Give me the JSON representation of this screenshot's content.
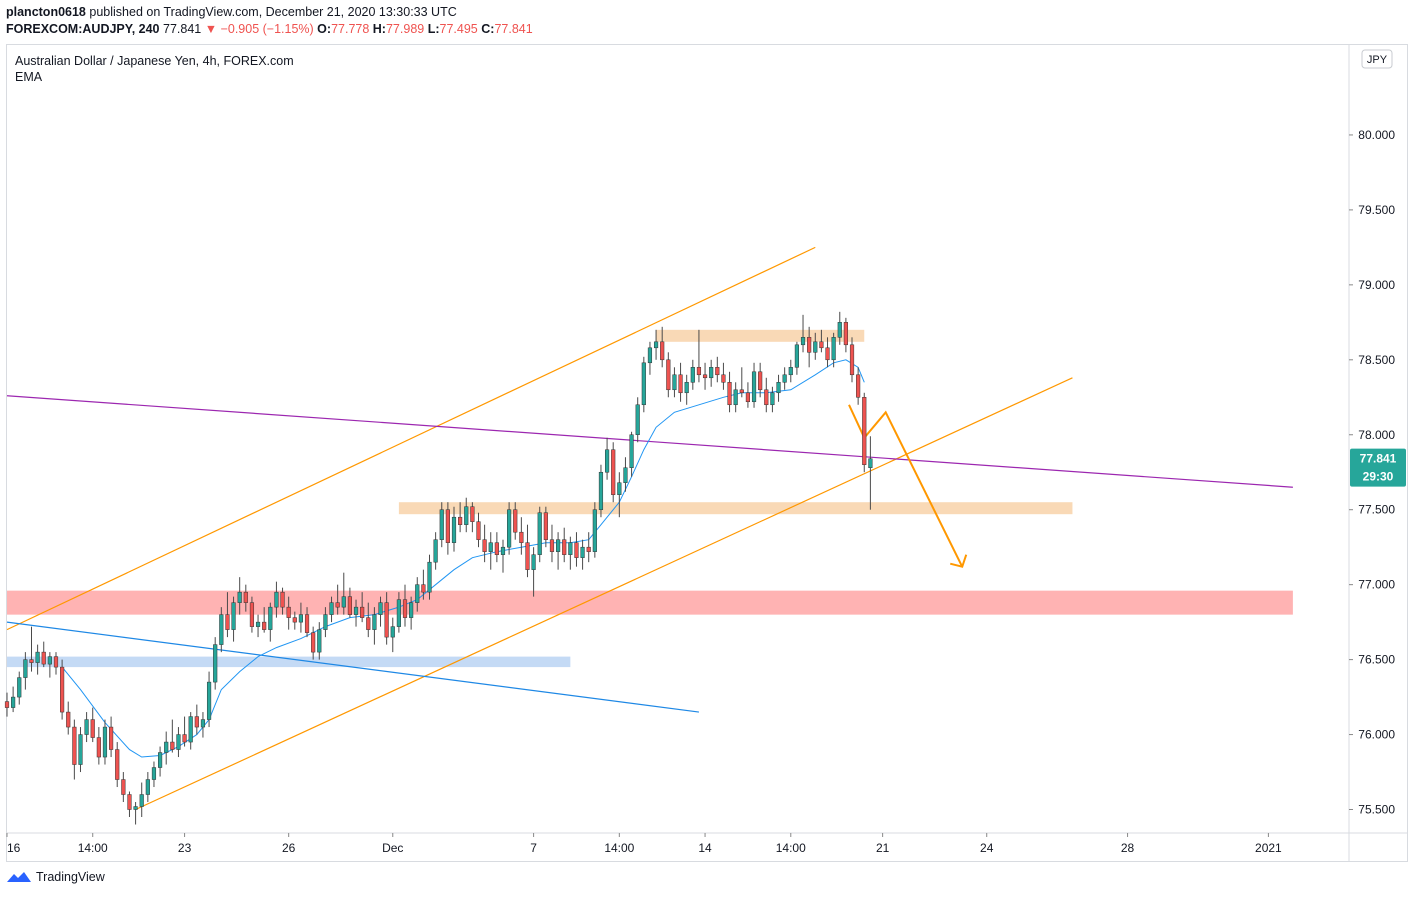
{
  "header": {
    "author": "plancton0618",
    "published_on": "published on TradingView.com, December 21, 2020 13:30:33 UTC",
    "symbol": "FOREXCOM:AUDJPY, 240",
    "last": "77.841",
    "change": "▼ −0.905 (−1.15%)",
    "o_label": "O:",
    "o_value": "77.778",
    "h_label": "H:",
    "h_value": "77.989",
    "l_label": "L:",
    "l_value": "77.495",
    "c_label": "C:",
    "c_value": "77.841"
  },
  "legend": {
    "title": "Australian Dollar / Japanese Yen, 4h, FOREX.com",
    "indicator": "EMA"
  },
  "price_tags": {
    "current": "77.841",
    "countdown": "29:30",
    "currency_button": "JPY"
  },
  "footer": {
    "brand": "TradingView"
  },
  "colors": {
    "up": "#26a69a",
    "down": "#ef5350",
    "wick": "#4a4a4a",
    "ema": "#2196f3",
    "channel": "#ff9800",
    "purple": "#9c27b0",
    "blue_line": "#1e88e5",
    "zone_orange": "#f9d9b6",
    "zone_red": "#ffb3b3",
    "zone_blue": "#c4daf5",
    "tag_bg": "#26a69a"
  },
  "chart_data": {
    "type": "candlestick",
    "title": "Australian Dollar / Japanese Yen, 4h, FOREX.com",
    "y_ticks": [
      "75.500",
      "76.000",
      "76.500",
      "77.000",
      "77.500",
      "78.000",
      "78.500",
      "79.000",
      "79.500",
      "80.000"
    ],
    "y_range": [
      75.35,
      80.6
    ],
    "x_ticks": [
      {
        "label": "16",
        "i": 0
      },
      {
        "label": "14:00",
        "i": 14
      },
      {
        "label": "23",
        "i": 29
      },
      {
        "label": "26",
        "i": 46
      },
      {
        "label": "Dec",
        "i": 63
      },
      {
        "label": "7",
        "i": 86
      },
      {
        "label": "14:00",
        "i": 100
      },
      {
        "label": "14",
        "i": 114
      },
      {
        "label": "14:00",
        "i": 128
      },
      {
        "label": "21",
        "i": 143
      },
      {
        "label": "24",
        "i": 160
      },
      {
        "label": "28",
        "i": 183
      },
      {
        "label": "2021",
        "i": 206
      }
    ],
    "x_domain": [
      0,
      219
    ],
    "ema_period": 20,
    "ohlc": [
      [
        76.22,
        76.28,
        76.12,
        76.18
      ],
      [
        76.18,
        76.32,
        76.15,
        76.25
      ],
      [
        76.25,
        76.42,
        76.2,
        76.38
      ],
      [
        76.38,
        76.55,
        76.3,
        76.5
      ],
      [
        76.5,
        76.72,
        76.42,
        76.48
      ],
      [
        76.48,
        76.6,
        76.4,
        76.55
      ],
      [
        76.55,
        76.62,
        76.45,
        76.47
      ],
      [
        76.47,
        76.55,
        76.38,
        76.52
      ],
      [
        76.52,
        76.55,
        76.4,
        76.45
      ],
      [
        76.45,
        76.5,
        76.1,
        76.15
      ],
      [
        76.15,
        76.22,
        76.0,
        76.05
      ],
      [
        76.05,
        76.1,
        75.7,
        75.8
      ],
      [
        75.8,
        76.05,
        75.75,
        76.0
      ],
      [
        76.0,
        76.15,
        75.95,
        76.1
      ],
      [
        76.1,
        76.18,
        75.95,
        75.98
      ],
      [
        75.98,
        76.05,
        75.8,
        75.85
      ],
      [
        75.85,
        76.1,
        75.8,
        76.05
      ],
      [
        76.05,
        76.12,
        75.85,
        75.9
      ],
      [
        75.9,
        75.95,
        75.65,
        75.7
      ],
      [
        75.7,
        75.75,
        75.55,
        75.6
      ],
      [
        75.6,
        75.62,
        75.45,
        75.5
      ],
      [
        75.5,
        75.55,
        75.4,
        75.52
      ],
      [
        75.52,
        75.68,
        75.45,
        75.6
      ],
      [
        75.6,
        75.75,
        75.55,
        75.7
      ],
      [
        75.7,
        75.82,
        75.65,
        75.78
      ],
      [
        75.78,
        75.92,
        75.72,
        75.88
      ],
      [
        75.88,
        76.02,
        75.8,
        75.95
      ],
      [
        75.95,
        76.1,
        75.88,
        75.9
      ],
      [
        75.9,
        76.05,
        75.85,
        76.0
      ],
      [
        76.0,
        76.12,
        75.92,
        75.95
      ],
      [
        75.95,
        76.15,
        75.9,
        76.12
      ],
      [
        76.12,
        76.2,
        76.0,
        76.05
      ],
      [
        76.05,
        76.15,
        75.98,
        76.1
      ],
      [
        76.1,
        76.42,
        76.05,
        76.35
      ],
      [
        76.35,
        76.65,
        76.3,
        76.6
      ],
      [
        76.6,
        76.85,
        76.55,
        76.8
      ],
      [
        76.8,
        76.95,
        76.65,
        76.7
      ],
      [
        76.7,
        76.92,
        76.62,
        76.88
      ],
      [
        76.88,
        77.05,
        76.8,
        76.95
      ],
      [
        76.95,
        77.0,
        76.82,
        76.88
      ],
      [
        76.88,
        76.92,
        76.68,
        76.72
      ],
      [
        76.72,
        76.8,
        76.65,
        76.75
      ],
      [
        76.75,
        76.85,
        76.68,
        76.7
      ],
      [
        76.7,
        76.88,
        76.62,
        76.85
      ],
      [
        76.85,
        77.02,
        76.78,
        76.95
      ],
      [
        76.95,
        76.98,
        76.8,
        76.85
      ],
      [
        76.85,
        76.92,
        76.7,
        76.78
      ],
      [
        76.78,
        76.82,
        76.7,
        76.75
      ],
      [
        76.75,
        76.88,
        76.68,
        76.8
      ],
      [
        76.8,
        76.85,
        76.65,
        76.68
      ],
      [
        76.68,
        76.72,
        76.5,
        76.55
      ],
      [
        76.55,
        76.75,
        76.5,
        76.7
      ],
      [
        76.7,
        76.85,
        76.65,
        76.8
      ],
      [
        76.8,
        76.92,
        76.75,
        76.88
      ],
      [
        76.88,
        77.0,
        76.8,
        76.85
      ],
      [
        76.85,
        77.08,
        76.8,
        76.92
      ],
      [
        76.92,
        76.98,
        76.78,
        76.8
      ],
      [
        76.8,
        76.9,
        76.72,
        76.85
      ],
      [
        76.85,
        76.95,
        76.75,
        76.78
      ],
      [
        76.78,
        76.88,
        76.65,
        76.7
      ],
      [
        76.7,
        76.85,
        76.6,
        76.8
      ],
      [
        76.8,
        76.92,
        76.72,
        76.88
      ],
      [
        76.88,
        76.95,
        76.6,
        76.65
      ],
      [
        76.65,
        76.78,
        76.55,
        76.72
      ],
      [
        76.72,
        76.95,
        76.68,
        76.9
      ],
      [
        76.9,
        77.0,
        76.72,
        76.78
      ],
      [
        76.78,
        76.92,
        76.7,
        76.88
      ],
      [
        76.88,
        77.05,
        76.82,
        77.0
      ],
      [
        77.0,
        77.1,
        76.9,
        76.95
      ],
      [
        76.95,
        77.2,
        76.9,
        77.15
      ],
      [
        77.15,
        77.35,
        77.1,
        77.3
      ],
      [
        77.3,
        77.55,
        77.25,
        77.5
      ],
      [
        77.5,
        77.55,
        77.2,
        77.28
      ],
      [
        77.28,
        77.52,
        77.22,
        77.45
      ],
      [
        77.45,
        77.55,
        77.35,
        77.4
      ],
      [
        77.4,
        77.58,
        77.35,
        77.52
      ],
      [
        77.52,
        77.55,
        77.35,
        77.42
      ],
      [
        77.42,
        77.48,
        77.25,
        77.3
      ],
      [
        77.3,
        77.4,
        77.15,
        77.22
      ],
      [
        77.22,
        77.35,
        77.1,
        77.28
      ],
      [
        77.28,
        77.35,
        77.15,
        77.2
      ],
      [
        77.2,
        77.3,
        77.08,
        77.25
      ],
      [
        77.25,
        77.55,
        77.2,
        77.5
      ],
      [
        77.5,
        77.55,
        77.3,
        77.35
      ],
      [
        77.35,
        77.45,
        77.2,
        77.28
      ],
      [
        77.28,
        77.4,
        77.05,
        77.1
      ],
      [
        77.1,
        77.25,
        76.92,
        77.2
      ],
      [
        77.2,
        77.52,
        77.15,
        77.48
      ],
      [
        77.48,
        77.52,
        77.25,
        77.3
      ],
      [
        77.3,
        77.4,
        77.15,
        77.22
      ],
      [
        77.22,
        77.35,
        77.1,
        77.3
      ],
      [
        77.3,
        77.38,
        77.15,
        77.2
      ],
      [
        77.2,
        77.32,
        77.1,
        77.28
      ],
      [
        77.28,
        77.35,
        77.12,
        77.18
      ],
      [
        77.18,
        77.3,
        77.1,
        77.25
      ],
      [
        77.25,
        77.35,
        77.15,
        77.22
      ],
      [
        77.22,
        77.55,
        77.18,
        77.5
      ],
      [
        77.5,
        77.8,
        77.45,
        77.75
      ],
      [
        77.75,
        77.98,
        77.7,
        77.9
      ],
      [
        77.9,
        77.95,
        77.55,
        77.6
      ],
      [
        77.6,
        77.75,
        77.45,
        77.68
      ],
      [
        77.68,
        77.85,
        77.62,
        77.78
      ],
      [
        77.78,
        78.02,
        77.72,
        78.0
      ],
      [
        78.0,
        78.25,
        77.95,
        78.2
      ],
      [
        78.2,
        78.52,
        78.15,
        78.48
      ],
      [
        78.48,
        78.62,
        78.4,
        78.58
      ],
      [
        78.58,
        78.7,
        78.5,
        78.62
      ],
      [
        78.62,
        78.72,
        78.45,
        78.5
      ],
      [
        78.5,
        78.55,
        78.25,
        78.3
      ],
      [
        78.3,
        78.45,
        78.25,
        78.4
      ],
      [
        78.4,
        78.48,
        78.22,
        78.28
      ],
      [
        78.28,
        78.4,
        78.2,
        78.35
      ],
      [
        78.35,
        78.5,
        78.3,
        78.45
      ],
      [
        78.45,
        78.7,
        78.35,
        78.4
      ],
      [
        78.4,
        78.48,
        78.3,
        78.38
      ],
      [
        78.38,
        78.5,
        78.32,
        78.45
      ],
      [
        78.45,
        78.52,
        78.35,
        78.4
      ],
      [
        78.4,
        78.48,
        78.3,
        78.35
      ],
      [
        78.35,
        78.42,
        78.15,
        78.2
      ],
      [
        78.2,
        78.35,
        78.15,
        78.3
      ],
      [
        78.3,
        78.45,
        78.25,
        78.28
      ],
      [
        78.28,
        78.35,
        78.18,
        78.22
      ],
      [
        78.22,
        78.48,
        78.18,
        78.42
      ],
      [
        78.42,
        78.48,
        78.25,
        78.3
      ],
      [
        78.3,
        78.38,
        78.15,
        78.2
      ],
      [
        78.2,
        78.32,
        78.15,
        78.28
      ],
      [
        78.28,
        78.4,
        78.22,
        78.35
      ],
      [
        78.35,
        78.45,
        78.3,
        78.4
      ],
      [
        78.4,
        78.5,
        78.35,
        78.45
      ],
      [
        78.45,
        78.62,
        78.4,
        78.6
      ],
      [
        78.6,
        78.8,
        78.55,
        78.65
      ],
      [
        78.65,
        78.72,
        78.45,
        78.55
      ],
      [
        78.55,
        78.68,
        78.5,
        78.62
      ],
      [
        78.62,
        78.7,
        78.55,
        78.58
      ],
      [
        78.58,
        78.65,
        78.45,
        78.5
      ],
      [
        78.5,
        78.68,
        78.45,
        78.65
      ],
      [
        78.65,
        78.82,
        78.6,
        78.75
      ],
      [
        78.75,
        78.78,
        78.55,
        78.6
      ],
      [
        78.6,
        78.65,
        78.35,
        78.4
      ],
      [
        78.4,
        78.45,
        78.2,
        78.25
      ],
      [
        78.25,
        78.28,
        77.75,
        77.8
      ],
      [
        77.78,
        77.99,
        77.5,
        77.84
      ]
    ],
    "ema": [
      [
        9,
        76.45
      ],
      [
        12,
        76.3
      ],
      [
        16,
        76.08
      ],
      [
        20,
        75.9
      ],
      [
        22,
        75.85
      ],
      [
        25,
        75.86
      ],
      [
        28,
        75.92
      ],
      [
        31,
        76.0
      ],
      [
        33,
        76.1
      ],
      [
        35,
        76.3
      ],
      [
        38,
        76.42
      ],
      [
        41,
        76.52
      ],
      [
        44,
        76.58
      ],
      [
        48,
        76.64
      ],
      [
        52,
        76.72
      ],
      [
        56,
        76.78
      ],
      [
        60,
        76.8
      ],
      [
        64,
        76.85
      ],
      [
        67,
        76.9
      ],
      [
        70,
        77.0
      ],
      [
        73,
        77.1
      ],
      [
        76,
        77.18
      ],
      [
        80,
        77.22
      ],
      [
        84,
        77.25
      ],
      [
        88,
        77.28
      ],
      [
        92,
        77.28
      ],
      [
        95,
        77.3
      ],
      [
        97,
        77.4
      ],
      [
        100,
        77.55
      ],
      [
        102,
        77.72
      ],
      [
        104,
        77.9
      ],
      [
        106,
        78.05
      ],
      [
        109,
        78.15
      ],
      [
        113,
        78.2
      ],
      [
        117,
        78.25
      ],
      [
        120,
        78.28
      ],
      [
        124,
        78.28
      ],
      [
        128,
        78.3
      ],
      [
        132,
        78.4
      ],
      [
        135,
        78.48
      ],
      [
        137,
        78.5
      ],
      [
        139,
        78.45
      ],
      [
        140,
        78.35
      ]
    ],
    "annotations": {
      "resistance_zone_top": {
        "x": [
          106,
          140
        ],
        "y": [
          78.62,
          78.7
        ]
      },
      "support_zone": {
        "x": [
          64,
          174
        ],
        "y": [
          77.47,
          77.55
        ]
      },
      "demand_zone": {
        "x": [
          0,
          210
        ],
        "y": [
          76.8,
          76.96
        ]
      },
      "blue_zone": {
        "x": [
          0,
          92
        ],
        "y": [
          76.45,
          76.52
        ]
      },
      "channel_upper": {
        "x": [
          0,
          132
        ],
        "y": [
          76.7,
          79.25
        ]
      },
      "channel_lower": {
        "x": [
          21,
          174
        ],
        "y": [
          75.5,
          78.38
        ]
      },
      "purple_trendline": {
        "x": [
          0,
          210
        ],
        "y": [
          78.26,
          77.65
        ]
      },
      "blue_trendline": {
        "x": [
          0,
          113
        ],
        "y": [
          76.75,
          76.15
        ]
      },
      "projection_path": [
        [
          137.5,
          78.2
        ],
        [
          140,
          77.98
        ],
        [
          143.5,
          78.15
        ],
        [
          156,
          77.12
        ]
      ]
    }
  }
}
